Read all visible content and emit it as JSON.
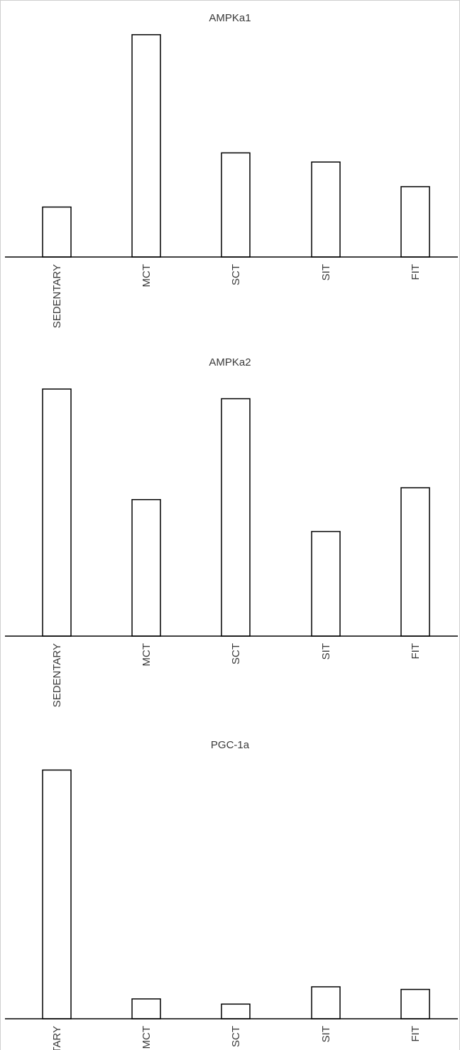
{
  "chart_data": [
    {
      "type": "bar",
      "title": "AMPKa1",
      "categories": [
        "SEDENTARY",
        "MCT",
        "SCT",
        "SIT",
        "FIT"
      ],
      "values": [
        71,
        316,
        148,
        135,
        100
      ],
      "ylim": [
        0,
        330
      ],
      "grid": false
    },
    {
      "type": "bar",
      "title": "AMPKa2",
      "categories": [
        "SEDENTARY",
        "MCT",
        "SCT",
        "SIT",
        "FIT"
      ],
      "values": [
        333,
        184,
        320,
        141,
        200
      ],
      "ylim": [
        0,
        355
      ],
      "grid": false
    },
    {
      "type": "bar",
      "title": "PGC-1a",
      "categories": [
        "SEDENTARY",
        "MCT",
        "SCT",
        "SIT",
        "FIT"
      ],
      "values": [
        288,
        23,
        17,
        37,
        34
      ],
      "ylim": [
        0,
        305
      ],
      "grid": false
    }
  ]
}
